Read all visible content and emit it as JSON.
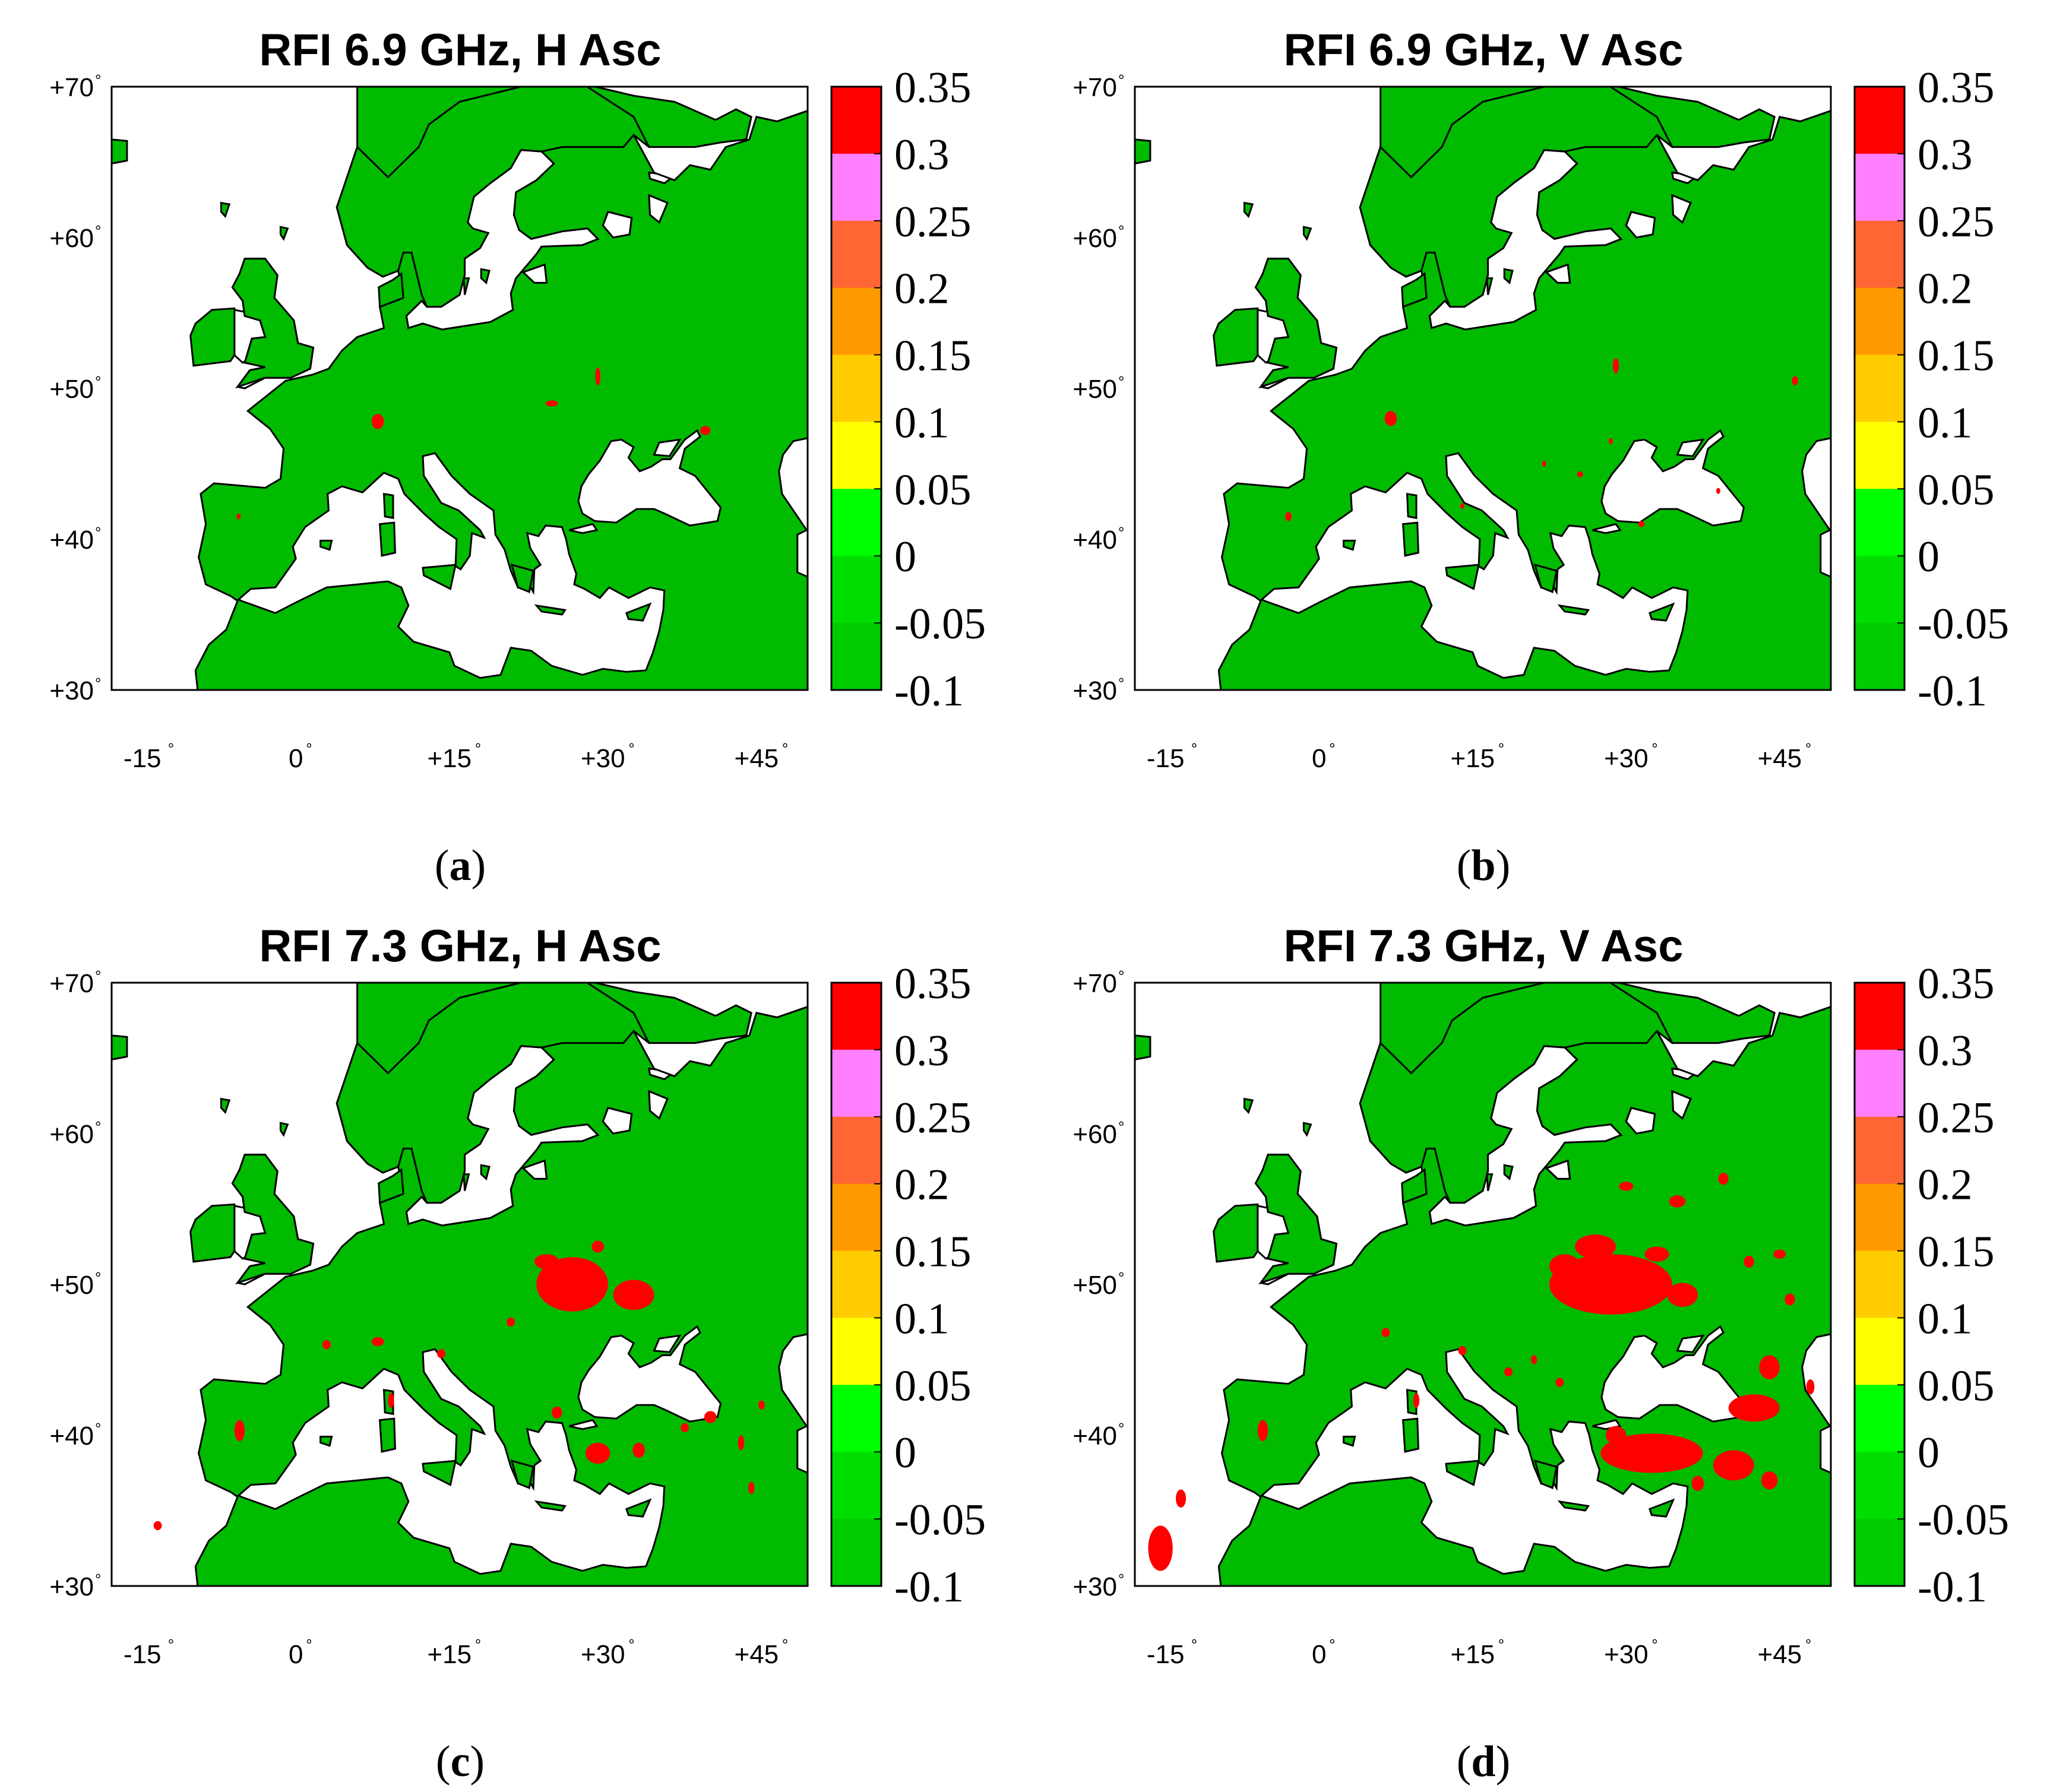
{
  "panels": [
    {
      "id": "a",
      "title": "RFI 6.9 GHz, H Asc",
      "caption": "a",
      "intensity": 0
    },
    {
      "id": "b",
      "title": "RFI 6.9 GHz, V Asc",
      "caption": "b",
      "intensity": 1
    },
    {
      "id": "c",
      "title": "RFI 7.3 GHz, H Asc",
      "caption": "c",
      "intensity": 2
    },
    {
      "id": "d",
      "title": "RFI 7.3 GHz, V Asc",
      "caption": "d",
      "intensity": 3
    }
  ],
  "axes": {
    "x_ticks": [
      "-15",
      "0",
      "+15",
      "+30",
      "+45"
    ],
    "y_ticks": [
      "+70",
      "+60",
      "+50",
      "+40",
      "+30"
    ],
    "degree_symbol": "°"
  },
  "colorbar": {
    "tick_labels": [
      "0.35",
      "0.3",
      "0.25",
      "0.2",
      "0.15",
      "0.1",
      "0.05",
      "0",
      "-0.05",
      "-0.1"
    ],
    "colors": [
      "#ff0000",
      "#ff80ff",
      "#ff6633",
      "#ff9900",
      "#ffcc00",
      "#ffff00",
      "#00ff00",
      "#00dd00",
      "#00cc00",
      "#00bb00"
    ]
  },
  "colors": {
    "land": "#00bb00",
    "coast": "#000000",
    "sea": "#ffffff",
    "rfi_high": "#ff0000"
  }
}
